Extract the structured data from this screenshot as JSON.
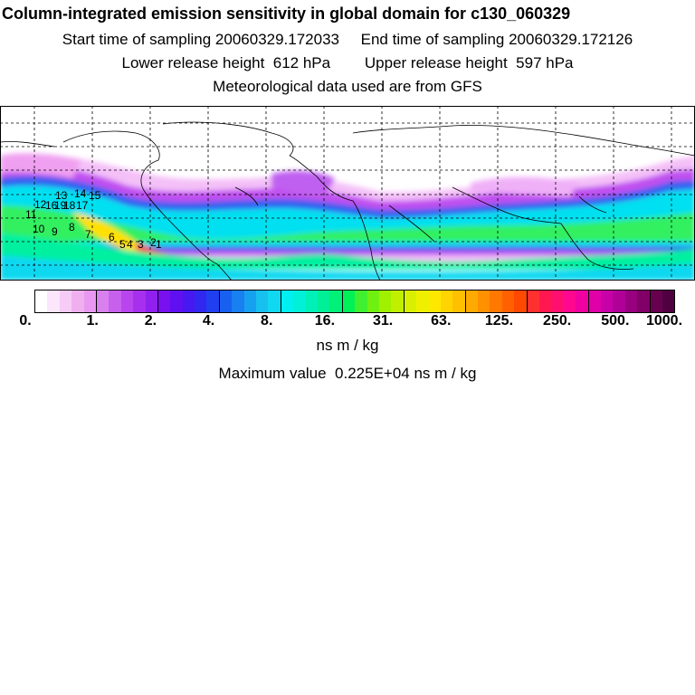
{
  "header": {
    "title": "Column-integrated emission sensitivity in global domain for c130_060329",
    "line2": "Start time of sampling 20060329.172033     End time of sampling 20060329.172126",
    "line3": "Lower release height  612 hPa        Upper release height  597 hPa",
    "line4": "Meteorological data used are from GFS"
  },
  "map": {
    "description_icon": "world-map-emission-sensitivity",
    "track_labels": [
      "1",
      "2",
      "3",
      "4",
      "5",
      "6",
      "7",
      "8",
      "9",
      "10",
      "11",
      "12",
      "13",
      "14",
      "15",
      "16",
      "17",
      "18",
      "19"
    ],
    "colors": {
      "band": "#00e0e0",
      "band_core": "#00c8ff",
      "lime": "#90ff00",
      "yellow": "#ffe000",
      "orange": "#ff6000",
      "red": "#ff0040",
      "purple": "#b000ff",
      "pink": "#ffb0ff",
      "blue": "#3050ff"
    }
  },
  "colorbar": {
    "tick_labels": [
      "0.",
      "1.",
      "2.",
      "4.",
      "8.",
      "16.",
      "31.",
      "63.",
      "125.",
      "250.",
      "500.",
      "1000."
    ],
    "segment_colors": [
      "#ffffff",
      "#fbe6fb",
      "#f6ccf6",
      "#f0b0f0",
      "#e898f0",
      "#d880ee",
      "#c860ee",
      "#b845ee",
      "#a630ee",
      "#9020ee",
      "#7810f0",
      "#6010f0",
      "#4818f0",
      "#3028f0",
      "#2040f0",
      "#1860f0",
      "#1880f0",
      "#18a0f0",
      "#18c0f0",
      "#10d8f0",
      "#00f0f0",
      "#00f0d8",
      "#00f0b8",
      "#00f098",
      "#00f078",
      "#00f058",
      "#40f030",
      "#70f010",
      "#a0f000",
      "#c0f000",
      "#d8f000",
      "#eef000",
      "#ffe800",
      "#ffd400",
      "#ffc000",
      "#ffaa00",
      "#ff9000",
      "#ff7800",
      "#ff6000",
      "#ff4800",
      "#ff3030",
      "#ff1850",
      "#ff1070",
      "#ff0890",
      "#f000a0",
      "#e000a8",
      "#c800a8",
      "#b00098",
      "#980080",
      "#800068",
      "#680050",
      "#500040"
    ],
    "units": "ns m / kg",
    "max_value": "Maximum value  0.225E+04 ns m / kg"
  }
}
